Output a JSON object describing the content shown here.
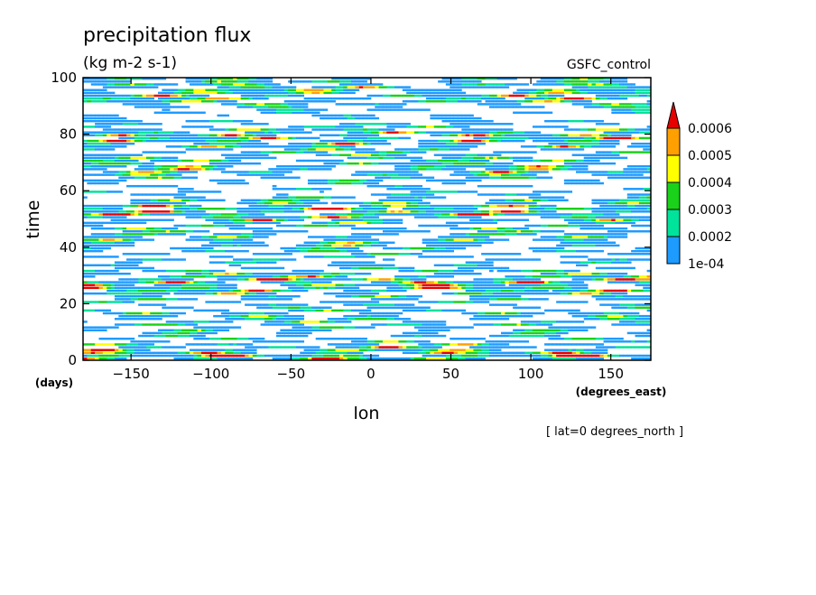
{
  "chart_data": {
    "type": "heatmap",
    "title": "precipitation flux",
    "units": "(kg m-2 s-1)",
    "dataset": "GSFC_control",
    "xlabel": "lon",
    "x_units": "(degrees_east)",
    "ylabel": "time",
    "y_units": "(days)",
    "xlim": [
      -180,
      175
    ],
    "ylim": [
      0,
      100
    ],
    "x_ticks": [
      -150,
      -100,
      -50,
      0,
      50,
      100,
      150
    ],
    "y_ticks": [
      0,
      20,
      40,
      60,
      80,
      100
    ],
    "slice_note": "[ lat=0 degrees_north ]",
    "colorbar": {
      "levels": [
        "1e-04",
        "0.0002",
        "0.0003",
        "0.0004",
        "0.0005",
        "0.0006"
      ],
      "colors": [
        "#1e9bff",
        "#00e39a",
        "#19d219",
        "#ffff00",
        "#ffa000",
        "#e60000"
      ],
      "extend": "max"
    }
  }
}
